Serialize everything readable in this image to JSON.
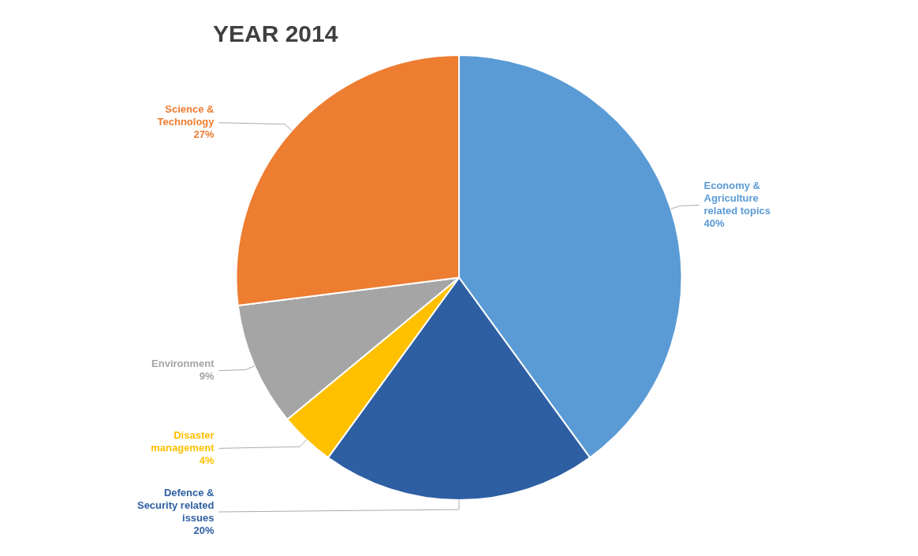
{
  "chart_data": {
    "type": "pie",
    "title": "YEAR 2014",
    "categories": [
      "Economy &\nAgriculture\nrelated topics",
      "Defence &\nSecurity related\nissues",
      "Disaster\nmanagement",
      "Environment",
      "Science &\nTechnology"
    ],
    "values": [
      40,
      20,
      4,
      9,
      27
    ],
    "value_labels": [
      "40%",
      "20%",
      "4%",
      "9%",
      "27%"
    ],
    "data_labels": true,
    "colors": [
      "#5B9BD5",
      "#2E5FA3",
      "#FFC000",
      "#A5A5A5",
      "#ED7D31"
    ]
  }
}
